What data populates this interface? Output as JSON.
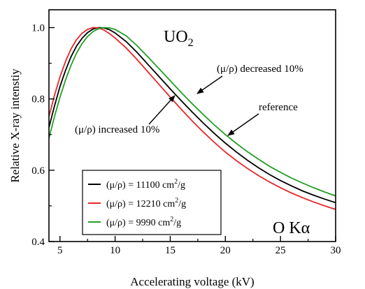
{
  "chart_data": {
    "type": "line",
    "title": "",
    "xlabel": "Accelerating voltage (kV)",
    "ylabel": "Relative X-ray intenstiy",
    "xlim": [
      4,
      30
    ],
    "ylim": [
      0.4,
      1.05
    ],
    "x_ticks": [
      "5",
      "10",
      "15",
      "20",
      "25",
      "30"
    ],
    "y_ticks": [
      "0.4",
      "0.6",
      "0.8",
      "1.0"
    ],
    "grid": false,
    "legend_position": "bottom-left",
    "series": [
      {
        "name": "(μ/ρ) = 11100 cm²/g",
        "color": "#000000",
        "x": [
          4,
          4.5,
          5,
          5.5,
          6,
          6.5,
          7,
          7.5,
          8,
          8.5,
          9,
          9.5,
          10,
          11,
          12,
          13,
          14,
          15,
          16,
          17,
          18,
          19,
          20,
          21,
          22,
          23,
          24,
          25,
          26,
          27,
          28,
          29,
          30
        ],
        "values": [
          0.72,
          0.78,
          0.835,
          0.88,
          0.918,
          0.948,
          0.97,
          0.986,
          0.996,
          1.0,
          0.999,
          0.994,
          0.985,
          0.961,
          0.93,
          0.896,
          0.862,
          0.828,
          0.795,
          0.763,
          0.732,
          0.703,
          0.676,
          0.651,
          0.628,
          0.607,
          0.588,
          0.571,
          0.556,
          0.542,
          0.53,
          0.519,
          0.509
        ]
      },
      {
        "name": "(μ/ρ) = 12210 cm²/g",
        "color": "#e8262a",
        "x": [
          4,
          4.5,
          5,
          5.5,
          6,
          6.5,
          7,
          7.5,
          8,
          8.5,
          9,
          9.5,
          10,
          11,
          12,
          13,
          14,
          15,
          16,
          17,
          18,
          19,
          20,
          21,
          22,
          23,
          24,
          25,
          26,
          27,
          28,
          29,
          30
        ],
        "values": [
          0.75,
          0.81,
          0.862,
          0.905,
          0.94,
          0.966,
          0.984,
          0.995,
          1.0,
          0.999,
          0.993,
          0.983,
          0.971,
          0.943,
          0.91,
          0.875,
          0.84,
          0.805,
          0.771,
          0.738,
          0.707,
          0.678,
          0.651,
          0.627,
          0.605,
          0.585,
          0.567,
          0.551,
          0.536,
          0.523,
          0.511,
          0.5,
          0.49
        ]
      },
      {
        "name": "(μ/ρ) = 9990 cm²/g",
        "color": "#22a024",
        "x": [
          4,
          4.5,
          5,
          5.5,
          6,
          6.5,
          7,
          7.5,
          8,
          8.5,
          9,
          9.5,
          10,
          11,
          12,
          13,
          14,
          15,
          16,
          17,
          18,
          19,
          20,
          21,
          22,
          23,
          24,
          25,
          26,
          27,
          28,
          29,
          30
        ],
        "values": [
          0.69,
          0.75,
          0.805,
          0.853,
          0.894,
          0.928,
          0.955,
          0.975,
          0.989,
          0.997,
          1.0,
          0.999,
          0.995,
          0.977,
          0.949,
          0.917,
          0.884,
          0.851,
          0.818,
          0.786,
          0.756,
          0.727,
          0.7,
          0.675,
          0.652,
          0.631,
          0.611,
          0.594,
          0.578,
          0.564,
          0.551,
          0.539,
          0.528
        ]
      }
    ],
    "annotations": {
      "compound": "UO",
      "compound_sub": "2",
      "line_label": "O Kα",
      "decreased_label": "(μ/ρ) decreased 10%",
      "increased_label": "(μ/ρ) increased 10%",
      "reference_label": "reference"
    }
  }
}
